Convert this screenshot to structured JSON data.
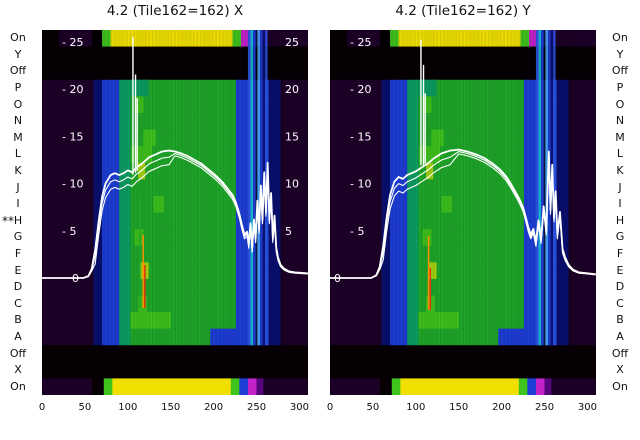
{
  "marker": {
    "text": "**",
    "row": "H",
    "row_index": 11
  },
  "chart_data": {
    "type": "heatmap",
    "x_ticks": [
      0,
      50,
      100,
      150,
      200,
      250,
      300
    ],
    "x_max": 310,
    "y_axis": {
      "ticks": [
        25,
        20,
        15,
        10,
        5
      ],
      "zero": 0,
      "range": [
        0,
        27.5
      ],
      "tick_prefix": "- "
    },
    "palette": {
      "dp": "#1c0126",
      "bk": "#060004",
      "db": "#0a1070",
      "bl": "#1e3ed6",
      "b2": "#2b55e6",
      "lb": "#49a8f2",
      "cy": "#17c3dd",
      "tl": "#0c9e63",
      "gr": "#1fa82a",
      "g2": "#3fc31d",
      "yg": "#a4d411",
      "yl": "#f0e000",
      "mg": "#c422c9",
      "vi": "#55067d",
      "or": "#ff9100",
      "rd": "#e53211",
      "wh": "#ffffff"
    },
    "row_templates": {
      "on": [
        [
          0,
          20,
          "bk"
        ],
        [
          20,
          58,
          "dp"
        ],
        [
          58,
          70,
          "bk"
        ],
        [
          70,
          80,
          "g2"
        ],
        [
          80,
          222,
          "yl"
        ],
        [
          222,
          232,
          "g2"
        ],
        [
          232,
          244,
          "mg"
        ],
        [
          244,
          252,
          "bl"
        ],
        [
          252,
          262,
          "vi"
        ],
        [
          262,
          310,
          "dp"
        ]
      ],
      "onb": [
        [
          0,
          58,
          "dp"
        ],
        [
          58,
          72,
          "bk"
        ],
        [
          72,
          82,
          "g2"
        ],
        [
          82,
          220,
          "yl"
        ],
        [
          220,
          230,
          "g2"
        ],
        [
          230,
          240,
          "bl"
        ],
        [
          240,
          250,
          "mg"
        ],
        [
          250,
          258,
          "vi"
        ],
        [
          258,
          310,
          "dp"
        ]
      ],
      "dark": [
        [
          0,
          310,
          "bk"
        ]
      ],
      "body": [
        [
          0,
          60,
          "dp"
        ],
        [
          60,
          70,
          "db"
        ],
        [
          70,
          90,
          "bl"
        ],
        [
          90,
          103,
          "tl"
        ],
        [
          103,
          226,
          "gr"
        ],
        [
          226,
          240,
          "bl"
        ],
        [
          240,
          264,
          "b2"
        ],
        [
          264,
          278,
          "db"
        ],
        [
          278,
          310,
          "dp"
        ]
      ]
    },
    "rows": [
      {
        "label": "On",
        "t": "on"
      },
      {
        "label": "Y",
        "t": "dark"
      },
      {
        "label": "Off",
        "t": "dark"
      },
      {
        "label": "P",
        "t": "body",
        "p": [
          [
            103,
            124,
            "tl"
          ]
        ]
      },
      {
        "label": "O",
        "t": "body",
        "p": [
          [
            108,
            118,
            "g2"
          ]
        ]
      },
      {
        "label": "N",
        "t": "body"
      },
      {
        "label": "M",
        "t": "body",
        "p": [
          [
            118,
            132,
            "g2"
          ]
        ]
      },
      {
        "label": "L",
        "t": "body",
        "p": [
          [
            104,
            128,
            "g2"
          ]
        ]
      },
      {
        "label": "K",
        "t": "body",
        "p": [
          [
            112,
            120,
            "yg"
          ]
        ]
      },
      {
        "label": "J",
        "t": "body"
      },
      {
        "label": "I",
        "t": "body",
        "p": [
          [
            130,
            142,
            "g2"
          ]
        ]
      },
      {
        "label": "H",
        "t": "body"
      },
      {
        "label": "G",
        "t": "body",
        "p": [
          [
            108,
            118,
            "g2"
          ]
        ]
      },
      {
        "label": "F",
        "t": "body"
      },
      {
        "label": "E",
        "t": "body",
        "p": [
          [
            115,
            124,
            "yg"
          ]
        ]
      },
      {
        "label": "D",
        "t": "body"
      },
      {
        "label": "C",
        "t": "body",
        "p": [
          [
            112,
            122,
            "g2"
          ]
        ]
      },
      {
        "label": "B",
        "t": "body",
        "p": [
          [
            103,
            150,
            "g2"
          ]
        ]
      },
      {
        "label": "A",
        "t": "body",
        "p": [
          [
            196,
            240,
            "bl"
          ]
        ]
      },
      {
        "label": "Off",
        "t": "dark"
      },
      {
        "label": "X",
        "t": "dark"
      },
      {
        "label": "On",
        "t": "onb"
      }
    ],
    "stripes": [
      [
        240,
        3,
        "b2",
        0.95
      ],
      [
        243,
        3,
        "cy",
        0.9
      ],
      [
        246,
        3,
        "bl",
        0.95
      ],
      [
        249,
        2,
        "bk",
        0.75
      ],
      [
        251,
        3,
        "lb",
        0.9
      ],
      [
        254,
        3,
        "bl",
        0.95
      ],
      [
        257,
        3,
        "db",
        0.95
      ],
      [
        260,
        3,
        "b2",
        0.85
      ]
    ],
    "plots": [
      {
        "title": "4.2 (Tile162=162) X",
        "zero_x": 30,
        "right_labels": true,
        "accents": [
          [
            113,
            "gr",
            168,
            278
          ],
          [
            117,
            "or",
            205,
            278
          ],
          [
            119,
            "rd",
            235,
            278
          ]
        ],
        "spikes": [
          [
            106,
            11,
            25.5
          ],
          [
            109,
            11.2,
            21.5
          ],
          [
            111,
            11.4,
            19
          ]
        ],
        "curve": [
          [
            0,
            0
          ],
          [
            48,
            0
          ],
          [
            54,
            0.2
          ],
          [
            58,
            1
          ],
          [
            62,
            3
          ],
          [
            66,
            6
          ],
          [
            70,
            8.6
          ],
          [
            74,
            10
          ],
          [
            80,
            10.9
          ],
          [
            85,
            11.1
          ],
          [
            90,
            10.9
          ],
          [
            95,
            11.1
          ],
          [
            100,
            11.4
          ],
          [
            105,
            11.2
          ],
          [
            110,
            11.7
          ],
          [
            115,
            12
          ],
          [
            120,
            12.4
          ],
          [
            125,
            12.8
          ],
          [
            130,
            13
          ],
          [
            135,
            13.2
          ],
          [
            140,
            13.4
          ],
          [
            148,
            13.5
          ],
          [
            155,
            13.4
          ],
          [
            162,
            13.2
          ],
          [
            170,
            12.9
          ],
          [
            178,
            12.5
          ],
          [
            186,
            12.1
          ],
          [
            194,
            11.5
          ],
          [
            202,
            10.9
          ],
          [
            210,
            10.2
          ],
          [
            216,
            9.5
          ],
          [
            222,
            8.8
          ],
          [
            226,
            8
          ],
          [
            230,
            6.8
          ],
          [
            233,
            5.6
          ],
          [
            236,
            4.6
          ],
          [
            239,
            4.9
          ],
          [
            241,
            3.6
          ],
          [
            243,
            5.8
          ],
          [
            245,
            3.2
          ],
          [
            247,
            6.2
          ],
          [
            249,
            4.2
          ],
          [
            251,
            8.2
          ],
          [
            253,
            5.2
          ],
          [
            255,
            9.8
          ],
          [
            257,
            6.2
          ],
          [
            259,
            11.2
          ],
          [
            261,
            7
          ],
          [
            263,
            12.2
          ],
          [
            265,
            6.2
          ],
          [
            267,
            9
          ],
          [
            269,
            4.2
          ],
          [
            271,
            6.6
          ],
          [
            273,
            3.2
          ],
          [
            275,
            2.2
          ],
          [
            278,
            1.4
          ],
          [
            282,
            1
          ],
          [
            288,
            0.7
          ],
          [
            295,
            0.6
          ],
          [
            309,
            0.5
          ]
        ]
      },
      {
        "title": "4.2 (Tile162=162) Y",
        "zero_x": 4,
        "right_labels": false,
        "accents": [
          [
            104,
            "gr",
            180,
            280
          ],
          [
            114,
            "or",
            206,
            280
          ],
          [
            116,
            "rd",
            238,
            280
          ]
        ],
        "spikes": [
          [
            106,
            12,
            25.2
          ],
          [
            109,
            12,
            22.5
          ],
          [
            111,
            12.2,
            19.5
          ]
        ],
        "curve": [
          [
            0,
            0
          ],
          [
            48,
            0
          ],
          [
            54,
            0.3
          ],
          [
            58,
            1.2
          ],
          [
            62,
            3.4
          ],
          [
            66,
            6.4
          ],
          [
            70,
            8.8
          ],
          [
            75,
            10.2
          ],
          [
            80,
            10.7
          ],
          [
            85,
            10.5
          ],
          [
            90,
            10.9
          ],
          [
            95,
            11.1
          ],
          [
            100,
            11.3
          ],
          [
            105,
            11.6
          ],
          [
            110,
            11.9
          ],
          [
            115,
            12.2
          ],
          [
            120,
            12.6
          ],
          [
            125,
            12.9
          ],
          [
            130,
            13.2
          ],
          [
            140,
            13.5
          ],
          [
            150,
            13.6
          ],
          [
            160,
            13.4
          ],
          [
            170,
            13.1
          ],
          [
            180,
            12.7
          ],
          [
            190,
            12.1
          ],
          [
            198,
            11.5
          ],
          [
            205,
            10.8
          ],
          [
            210,
            10.1
          ],
          [
            215,
            9.3
          ],
          [
            220,
            8.5
          ],
          [
            225,
            7.5
          ],
          [
            228,
            6.5
          ],
          [
            231,
            5.4
          ],
          [
            234,
            4.6
          ],
          [
            237,
            5.2
          ],
          [
            240,
            3.8
          ],
          [
            243,
            6.1
          ],
          [
            246,
            4.1
          ],
          [
            249,
            7.6
          ],
          [
            252,
            5
          ],
          [
            255,
            13.4
          ],
          [
            257,
            7.2
          ],
          [
            259,
            12
          ],
          [
            261,
            6.4
          ],
          [
            263,
            9.2
          ],
          [
            265,
            4.6
          ],
          [
            268,
            7
          ],
          [
            271,
            3.1
          ],
          [
            274,
            2.2
          ],
          [
            278,
            1.4
          ],
          [
            283,
            0.9
          ],
          [
            290,
            0.6
          ],
          [
            300,
            0.5
          ],
          [
            309,
            0.4
          ]
        ]
      }
    ]
  }
}
